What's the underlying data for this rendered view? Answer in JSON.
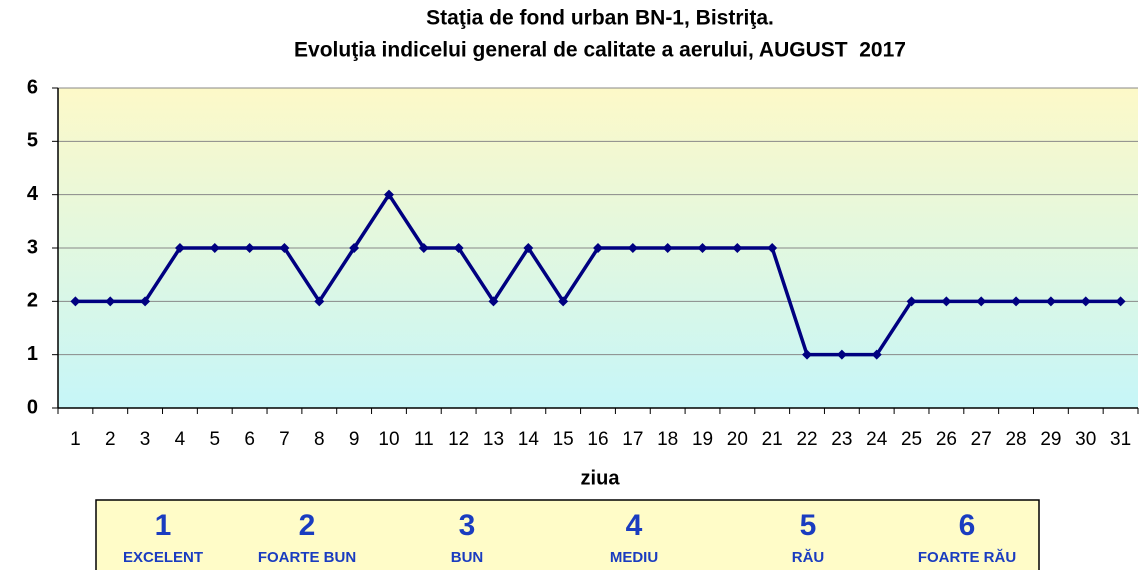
{
  "chart_data": {
    "type": "line",
    "title": "Staţia de fond urban BN-1, Bistriţa.",
    "subtitle": "Evoluţia indicelui general de calitate a aerului, AUGUST  2017",
    "x_label": "ziua",
    "categories": [
      "1",
      "2",
      "3",
      "4",
      "5",
      "6",
      "7",
      "8",
      "9",
      "10",
      "11",
      "12",
      "13",
      "14",
      "15",
      "16",
      "17",
      "18",
      "19",
      "20",
      "21",
      "22",
      "23",
      "24",
      "25",
      "26",
      "27",
      "28",
      "29",
      "30",
      "31"
    ],
    "values": [
      2,
      2,
      2,
      3,
      3,
      3,
      3,
      2,
      3,
      4,
      3,
      3,
      2,
      3,
      2,
      3,
      3,
      3,
      3,
      3,
      3,
      1,
      1,
      1,
      2,
      2,
      2,
      2,
      2,
      2,
      2
    ],
    "color": "#000080",
    "ylim": [
      0,
      6
    ],
    "yticks": [
      0,
      1,
      2,
      3,
      4,
      5,
      6
    ],
    "grid": true,
    "index_scale": [
      {
        "value": 1,
        "label": "EXCELENT"
      },
      {
        "value": 2,
        "label": "FOARTE BUN"
      },
      {
        "value": 3,
        "label": "BUN"
      },
      {
        "value": 4,
        "label": "MEDIU"
      },
      {
        "value": 5,
        "label": "RĂU"
      },
      {
        "value": 6,
        "label": "FOARTE RĂU"
      }
    ]
  }
}
